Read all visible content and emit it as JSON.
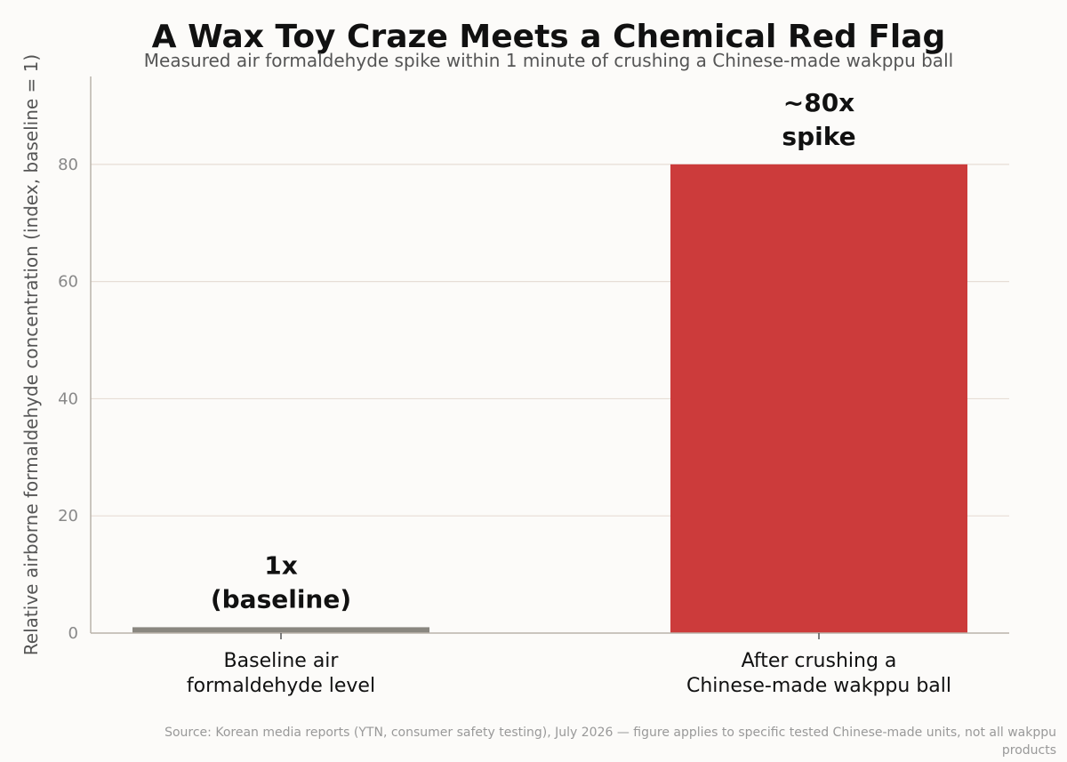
{
  "chart_data": {
    "type": "bar",
    "title": "A Wax Toy Craze Meets a Chemical Red Flag",
    "subtitle": "Measured air formaldehyde spike within 1 minute of crushing a Chinese-made wakppu ball",
    "ylabel": "Relative airborne formaldehyde concentration (index, baseline = 1)",
    "xlabel": "",
    "ylim": [
      0,
      95
    ],
    "yticks": [
      0,
      20,
      40,
      60,
      80
    ],
    "grid": true,
    "categories": [
      [
        "Baseline air",
        "formaldehyde level"
      ],
      [
        "After crushing a",
        "Chinese-made wakppu ball"
      ]
    ],
    "values": [
      1,
      80
    ],
    "data_labels": [
      [
        "1x",
        "(baseline)"
      ],
      [
        "~80x",
        "spike"
      ]
    ],
    "colors": [
      "#8a8780",
      "#cc3b3b"
    ],
    "source": [
      "Source: Korean media reports (YTN, consumer safety testing), July 2026 — figure applies to specific tested Chinese-made units, not all wakppu",
      "products"
    ]
  }
}
